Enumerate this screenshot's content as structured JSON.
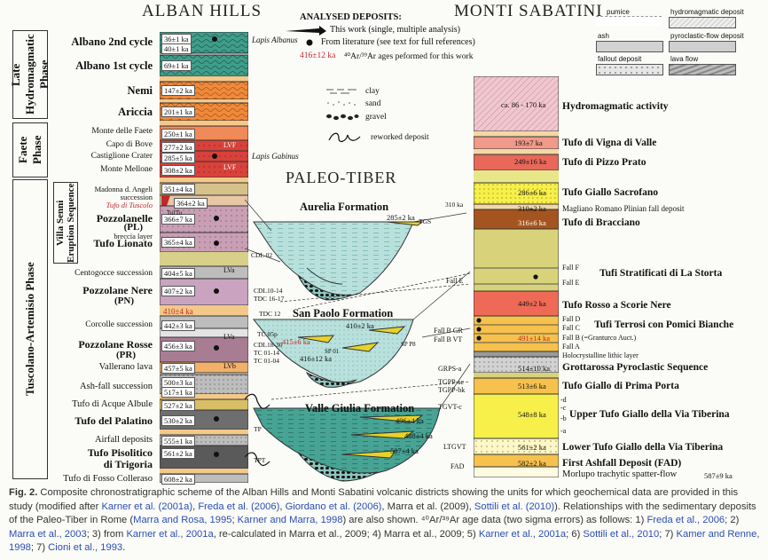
{
  "headers": {
    "left": "ALBAN HILLS",
    "right": "MONTI SABATINI",
    "middle": "PALEO-TIBER"
  },
  "legend": {
    "title": "ANALYSED DEPOSITS:",
    "this_work": "This work (single, multiple analysis)",
    "literature": "From literature (see text for full references)",
    "ages_red": "416±12 ka",
    "ages_text": "⁴⁰Ar/³⁹Ar ages peformed for this work",
    "clay": "clay",
    "sand": "sand",
    "gravel": "gravel",
    "reworked": "reworked deposit",
    "pumice": "pumice",
    "ash": "ash",
    "fallout": "fallout deposit",
    "hydromagmatic": "hydromagmatic deposit",
    "pyroclastic": "pyroclastic-flow deposit",
    "lava": "lava flow"
  },
  "phases": {
    "late": "Late Hydromagmatic Phase",
    "faete": "Faete Phase",
    "tuscolano": "Tuscolano-Artemisio Phase",
    "villa_senni": "Villa Senni Eruption Sequence"
  },
  "alban_labels": {
    "albano2": "Albano 2nd cycle",
    "albano1": "Albano 1st cycle",
    "nemi": "Nemi",
    "ariccia": "Ariccia",
    "monte_faete": "Monte delle Faete",
    "capo_bove": "Capo di Bove",
    "castiglione": "Castiglione Crater",
    "monte_mellone": "Monte Mellone",
    "madonna": "Madonna d. Angeli succession",
    "tufo_tuscolo": "Tufo di Tuscolo",
    "pozzolanelle": "Pozzolanelle",
    "pl": "(PL)",
    "breccia": "breccia layer",
    "tufo_lionato": "Tufo Lionato",
    "centogocce": "Centogocce succession",
    "pozzolane_nere": "Pozzolane Nere",
    "pn": "(PN)",
    "corcolle": "Corcolle succession",
    "pozzolane_rosse": "Pozzolane Rosse",
    "pr": "(PR)",
    "vallerano": "Vallerano lava",
    "ashfall": "Ash-fall succession",
    "acque_albule": "Tufo di Acque Albule",
    "palatino": "Tufo del Palatino",
    "airfall": "Airfall deposits",
    "pisolitico": "Tufo Pisolitico",
    "trigoria": "di Trigoria",
    "fosso": "Tufo di Fosso Colleraso"
  },
  "alban_ages": {
    "a1": "36±1 ka",
    "a2": "40±1 ka",
    "a3": "69±1 ka",
    "a4": "147±2 ka",
    "a5": "201±1 ka",
    "a6": "250±1 ka",
    "a7": "277±2 ka",
    "a8": "285±5 ka",
    "a9": "308±2 ka",
    "a10": "351±4 ka",
    "a11": "364±2 ka",
    "a12": "366±7 ka",
    "a13": "365±4 ka",
    "a14": "404±5 ka",
    "a15": "407±2 ka",
    "a16": "410±4 ka",
    "a17": "442±3 ka",
    "a18": "456±3 ka",
    "a19": "457±5 ka",
    "a20": "500±3 ka",
    "a21": "517±1 ka",
    "a22": "527±2 ka",
    "a23": "530±2 ka",
    "a24": "555±1 ka",
    "a25": "561±2 ka",
    "a26": "608±2 ka"
  },
  "alban_tags": {
    "lapis_albanus": "Lapis Albanus",
    "lapis_gabinus": "Lapis Gabinus",
    "lvf": "LVF",
    "lva": "LVa",
    "lvb": "LVb",
    "tuftu": "TufTu"
  },
  "tiber": {
    "aurelia": "Aurelia Formation",
    "san_paolo": "San Paolo Formation",
    "valle_giulia": "Valle Giulia Formation",
    "t1": "285±2 ka",
    "t2": "410±2 ka",
    "t3": "415±6 ka",
    "t4": "416±12 ka",
    "t5": "496±4 ka",
    "t6": "488±4 ka",
    "t7": "507±4 ka",
    "arrows": {
      "cdl02": "CDL 02",
      "cdl10": "CDL10-14",
      "tdc16": "TDC 16-17",
      "tdc12": "TDC 12",
      "tc05": "TC 05p",
      "cdl18": "CDL18-30",
      "tc01": "TC 01-14",
      "tc014": "TC 01-04",
      "tp": "TP",
      "tpt": "TPT",
      "tgs": "TGS",
      "sp": "SP P8",
      "sp01": "SP 01",
      "ma310": "310 ka"
    }
  },
  "sabatini": {
    "hydro": "Hydromagmatic activity",
    "hydro_age": "ca. 86 - 170 ka",
    "vigna": "Tufo di Vigna di Valle",
    "vigna_age": "193±7 ka",
    "pizzo": "Tufo di Pizzo Prato",
    "pizzo_age": "249±16 ka",
    "sacrofano": "Tufo Giallo Sacrofano",
    "sacrofano_age": "286±6 ka",
    "magliano": "Magliano Romano Plinian fall deposit",
    "magliano_age": "310±2 ka",
    "bracciano": "Tufo di Bracciano",
    "bracciano_age": "316±6 ka",
    "storta": "Tufi Stratificati di La Storta",
    "fallF": "Fall F",
    "fallE": "Fall E",
    "rosso": "Tufo Rosso a Scorie Nere",
    "rosso_age": "449±2 ka",
    "terrosi": "Tufi Terrosi con Pomici Bianche",
    "fallD": "Fall D",
    "fallC": "Fall C",
    "fallB": "Fall B (=Granturco Auct.)",
    "fallB_age": "491±14 ka",
    "fallA": "Fall A",
    "holo": "Holocrystalline lithic layer",
    "grotta": "Grottarossa Pyroclastic Sequence",
    "grotta_age": "514±10 ka",
    "prima": "Tufo Giallo di Prima Porta",
    "prima_age": "513±6 ka",
    "upper": "Upper Tufo Giallo della Via Tiberina",
    "upper_age": "548±8 ka",
    "lower": "Lower Tufo Giallo della Via Tiberina",
    "lower_age": "561±2 ka",
    "fad": "First Ashfall Deposit (FAD)",
    "fad_age": "582±2 ka",
    "morlupo": "Morlupo trachytic spatter-flow",
    "morlupo_age": "587±9 ka",
    "side": {
      "fallE": "Fall E",
      "fallBGR": "Fall B GR",
      "fallBVT": "Fall B VT",
      "grps": "GRPS-a",
      "tgpp": "TGPP-sc",
      "tgppbk": "TGPP-bk",
      "tgvt": "TGVT-c",
      "ltgvt": "LTGVT",
      "fad": "FAD"
    },
    "upper_sub": {
      "d": "-d",
      "c": "-c",
      "b": "-b",
      "a": "-a"
    }
  },
  "caption": {
    "fig": "Fig. 2.",
    "t1": " Composite chronostratigraphic scheme of the Alban Hills and Monti Sabatini volcanic districts showing the units for which geochemical data are provided in this study (modified after ",
    "r1": "Karner et al. (2001a)",
    "t2": ", ",
    "r2": "Freda et al. (2006)",
    "t3": ", ",
    "r3": "Giordano et al. (2006)",
    "t4": ", Marra et al. (2009), ",
    "r4": "Sottili et al. (2010)",
    "t5": "). Relationships with the sedimentary deposits of the Paleo-Tiber in Rome (",
    "r5": "Marra and Rosa, 1995",
    "t6": "; ",
    "r6": "Karner and Marra, 1998",
    "t7": ") are also shown. ⁴⁰Ar/³⁹Ar age data (two sigma errors) as follows: 1) ",
    "r7": "Freda et al., 2006",
    "t8": "; 2) ",
    "r8": "Marra et al., 2003",
    "t9": "; 3) from ",
    "r9": "Karner et al., 2001a",
    "t10": ", re-calculated in Marra et al., 2009; 4) Marra et al., 2009; 5) ",
    "r10": "Karner et al., 2001a",
    "t11": "; 6) ",
    "r11": "Sottili et al., 2010",
    "t12": "; 7) ",
    "r12": "Kamer and Renne, 1998",
    "t13": "; 7) ",
    "r13": "Cioni et al., 1993",
    "t14": "."
  }
}
